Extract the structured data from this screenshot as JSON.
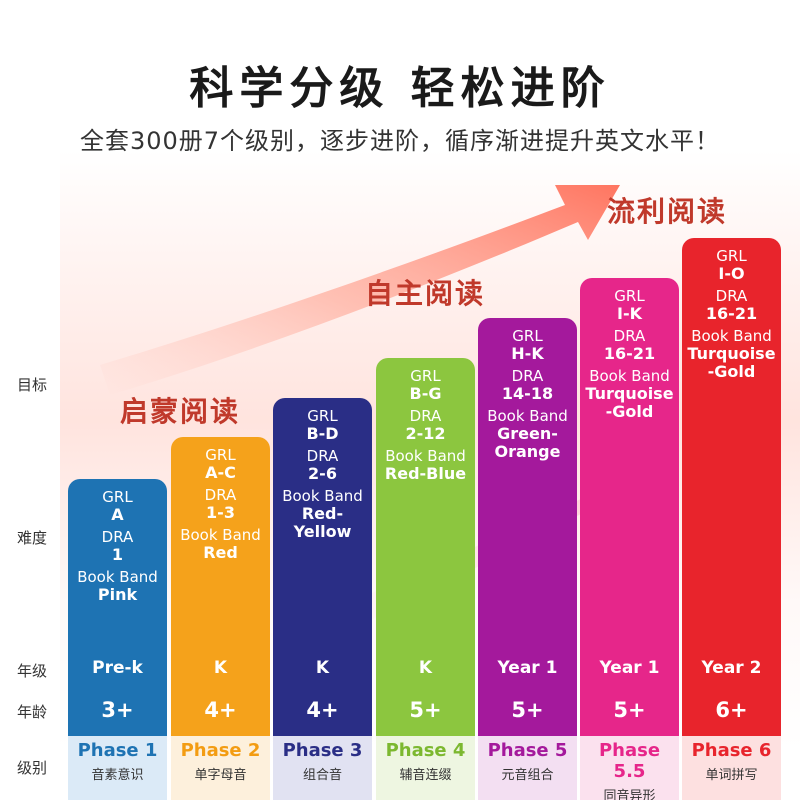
{
  "header": {
    "title": "科学分级  轻松进阶",
    "subtitle": "全套300册7个级别，逐步进阶，循序渐进提升英文水平！"
  },
  "stages": [
    "启蒙阅读",
    "自主阅读",
    "流利阅读"
  ],
  "row_labels": {
    "target": "目标",
    "difficulty": "难度",
    "grade": "年级",
    "age": "年龄",
    "level": "级别"
  },
  "spec_labels": {
    "grl": "GRL",
    "dra": "DRA",
    "book_band": "Book Band"
  },
  "columns": [
    {
      "grl": "A",
      "dra": "1",
      "band": "Pink",
      "grade": "Pre-k",
      "age": "3+",
      "phase": "Phase 1",
      "desc": "音素意识",
      "color": "#1e73b3",
      "phase_bg": "#dbeaf7",
      "phase_color": "#1e73b3"
    },
    {
      "grl": "A-C",
      "dra": "1-3",
      "band": "Red",
      "grade": "K",
      "age": "4+",
      "phase": "Phase 2",
      "desc": "单字母音",
      "color": "#f5a21b",
      "phase_bg": "#fdf0dc",
      "phase_color": "#f39c12"
    },
    {
      "grl": "B-D",
      "dra": "2-6",
      "band": "Red-\nYellow",
      "grade": "K",
      "age": "4+",
      "phase": "Phase 3",
      "desc": "组合音",
      "color": "#2a2e86",
      "phase_bg": "#e1e2f2",
      "phase_color": "#2a2e86"
    },
    {
      "grl": "B-G",
      "dra": "2-12",
      "band": "Red-Blue",
      "grade": "K",
      "age": "5+",
      "phase": "Phase 4",
      "desc": "辅音连缀",
      "color": "#8cc63f",
      "phase_bg": "#eef6e1",
      "phase_color": "#7cb82f"
    },
    {
      "grl": "H-K",
      "dra": "14-18",
      "band": "Green-\nOrange",
      "grade": "Year 1",
      "age": "5+",
      "phase": "Phase 5",
      "desc": "元音组合",
      "color": "#a4199c",
      "phase_bg": "#f3dff2",
      "phase_color": "#a4199c"
    },
    {
      "grl": "I-K",
      "dra": "16-21",
      "band": "Turquoise\n-Gold",
      "grade": "Year 1",
      "age": "5+",
      "phase": "Phase 5.5",
      "desc": "同音异形",
      "color": "#e6268a",
      "phase_bg": "#fbe1ee",
      "phase_color": "#e6268a"
    },
    {
      "grl": "I-O",
      "dra": "16-21",
      "band": "Turquoise\n-Gold",
      "grade": "Year 2",
      "age": "6+",
      "phase": "Phase 6",
      "desc": "单词拼写",
      "color": "#e8242c",
      "phase_bg": "#fde0e0",
      "phase_color": "#e8242c"
    }
  ]
}
